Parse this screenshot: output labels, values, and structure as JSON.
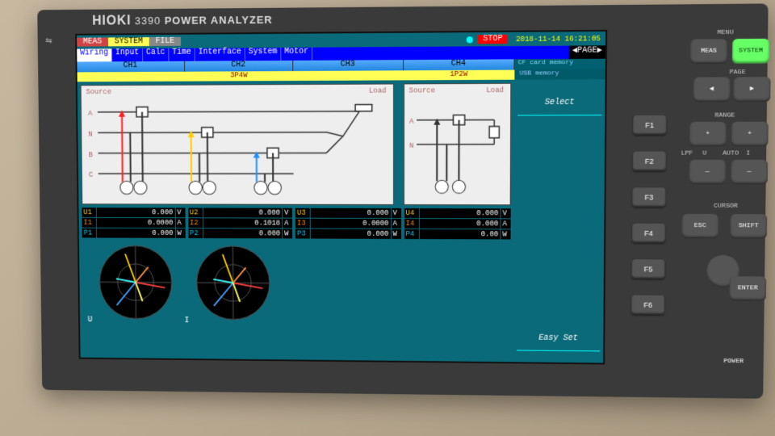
{
  "bezel": {
    "brand": "HIOKI",
    "model": "3390",
    "product": "POWER ANALYZER"
  },
  "top": {
    "tabs": {
      "meas": "MEAS",
      "system": "SYSTEM",
      "file": "FILE"
    },
    "stop": "STOP",
    "datetime": "2018-11-14 16:21:05"
  },
  "menu": [
    "Wiring",
    "Input",
    "Calc",
    "Time",
    "Interface",
    "System",
    "Motor"
  ],
  "pageLabel": "PAGE",
  "channels": [
    "CH1",
    "CH2",
    "CH3",
    "CH4"
  ],
  "cfcard": "CF card memory",
  "usbmem": "USB  memory",
  "wiring": {
    "left": "3P4W",
    "right": "1P2W"
  },
  "diagramLabels": {
    "source": "Source",
    "load": "Load"
  },
  "readouts": [
    [
      {
        "l": "U1",
        "v": "0.000",
        "u": "V"
      },
      {
        "l": "I1",
        "v": "0.0000",
        "u": "A"
      },
      {
        "l": "P1",
        "v": "0.000",
        "u": "W"
      }
    ],
    [
      {
        "l": "U2",
        "v": "0.000",
        "u": "V"
      },
      {
        "l": "I2",
        "v": "0.1018",
        "u": "A"
      },
      {
        "l": "P2",
        "v": "0.000",
        "u": "W"
      }
    ],
    [
      {
        "l": "U3",
        "v": "0.000",
        "u": "V"
      },
      {
        "l": "I3",
        "v": "0.0000",
        "u": "A"
      },
      {
        "l": "P3",
        "v": "0.000",
        "u": "W"
      }
    ],
    [
      {
        "l": "U4",
        "v": "0.000",
        "u": "V"
      },
      {
        "l": "I4",
        "v": "0.000",
        "u": "A"
      },
      {
        "l": "P4",
        "v": "0.00",
        "u": "W"
      }
    ]
  ],
  "vectorLabels": {
    "u": "U",
    "i": "I"
  },
  "sidebarBtns": [
    "Select",
    "",
    "",
    "",
    "",
    "Easy Set"
  ],
  "hw": {
    "menu": "MENU",
    "meas": "MEAS",
    "system": "SYSTEM",
    "page": "PAGE",
    "f": [
      "F1",
      "F2",
      "F3",
      "F4",
      "F5",
      "F6"
    ],
    "range": "RANGE",
    "cursor": "CURSOR",
    "power": "POWER",
    "esc": "ESC",
    "shift": "SHIFT",
    "enter": "ENTER",
    "plus": "+",
    "minus": "—",
    "u": "U",
    "i": "I",
    "left": "◀",
    "right": "▶",
    "auto": "AUTO",
    "lpf": "LPF"
  },
  "colors": {
    "screenBg": "#0a6a7a",
    "menuBar": "#0000ff",
    "chBar": "#44aaff",
    "yellow": "#ffff55",
    "red": "#ff0000",
    "orange": "#ff8800",
    "phase": [
      "#ff2020",
      "#ffcc00",
      "#2090ff"
    ]
  },
  "vectors": {
    "u": [
      {
        "angle": -10,
        "len": 0.9,
        "color": "#ff4040"
      },
      {
        "angle": 110,
        "len": 0.9,
        "color": "#ffcc00"
      },
      {
        "angle": 230,
        "len": 0.9,
        "color": "#40a0ff"
      },
      {
        "angle": 50,
        "len": 0.6,
        "color": "#ff9040"
      },
      {
        "angle": 170,
        "len": 0.6,
        "color": "#40ffff"
      },
      {
        "angle": 290,
        "len": 0.6,
        "color": "#ffff60"
      }
    ],
    "i": [
      {
        "angle": -10,
        "len": 0.9,
        "color": "#ff4040"
      },
      {
        "angle": 110,
        "len": 0.9,
        "color": "#ffcc00"
      },
      {
        "angle": 230,
        "len": 0.9,
        "color": "#40a0ff"
      },
      {
        "angle": 50,
        "len": 0.6,
        "color": "#ff9040"
      },
      {
        "angle": 170,
        "len": 0.6,
        "color": "#40ffff"
      },
      {
        "angle": 290,
        "len": 0.6,
        "color": "#ffff60"
      }
    ]
  }
}
